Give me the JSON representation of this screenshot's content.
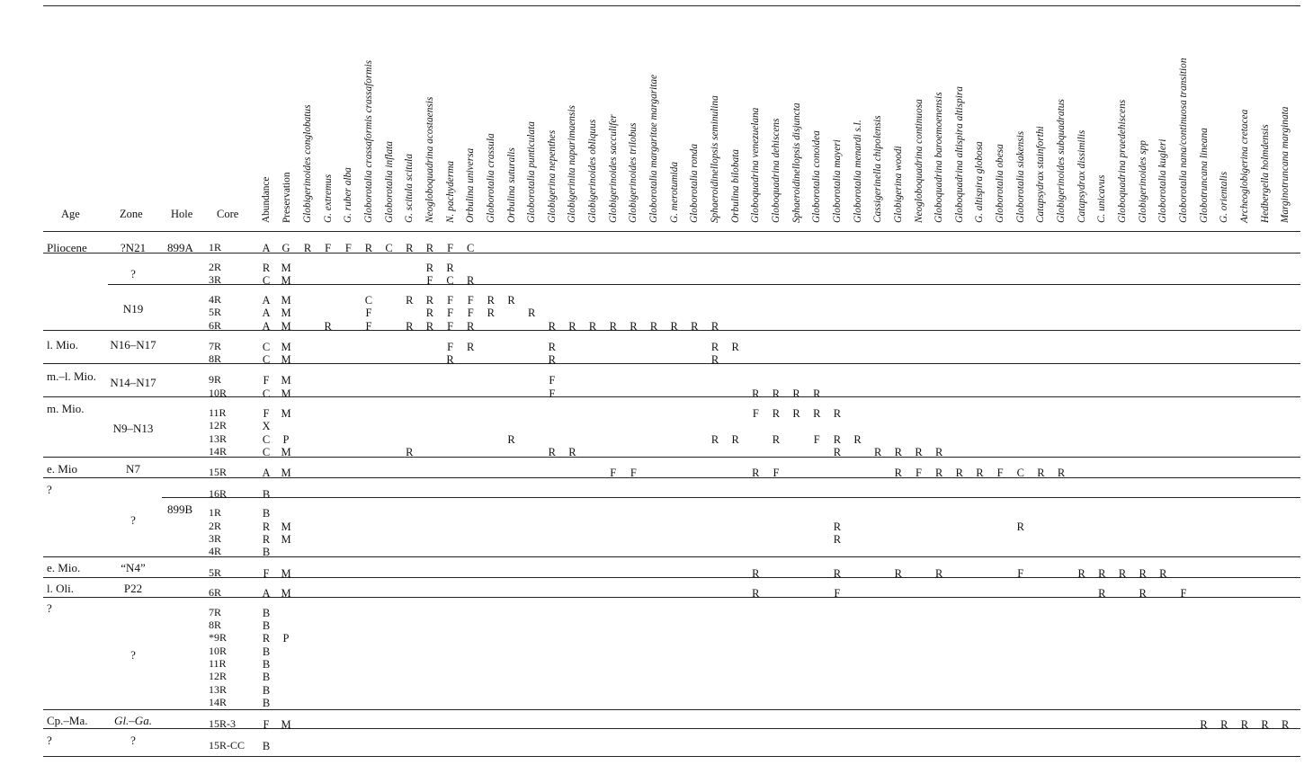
{
  "headers": {
    "age": "Age",
    "zone": "Zone",
    "hole": "Hole",
    "core": "Core",
    "abundance": "Abundance",
    "preservation": "Preservation"
  },
  "species": [
    "Globigerinoides conglobatus",
    "G. extremus",
    "G. ruber alba",
    "Globorotalia crassaformis crassaformis",
    "Globorotalia inflata",
    "G. scitula scitula",
    "Neogloboquadrina acostaensis",
    "N. pachyderma",
    "Orbulina universa",
    "Globorotalia crassula",
    "Orbulina suturalis",
    "Globorotalia punticulata",
    "Globigerina nepenthes",
    "Globigerinita naparimaensis",
    "Globigerinoides obliquus",
    "Globigerinoides sacculifer",
    "Globigerinoides trilobus",
    "Globorotalia margaritae margaritae",
    "G. merotumida",
    "Globorotalia ronda",
    "Sphaeroidinellopsis seminulina",
    "Orbulina bilobata",
    "Globoquadrina venezuelana",
    "Globoquadrina dehiscens",
    "Sphaeroidinellopsis disjuncta",
    "Globorotalia conoidea",
    "Globorotalia mayeri",
    "Globorotalia menardi s.l.",
    "Cassigerinella chipolensis",
    "Globigerina woodi",
    "Neogloboquadrina continuosa",
    "Globoquadrina baroemoenensis",
    "Globoquadrina altispira altispira",
    "G. altispira globosa",
    "Globorotalia obesa",
    "Globorotalia siakensis",
    "Catapsydrax stainforthi",
    "Globigerinoides subquadratus",
    "Catapsydrax dissimilis",
    "C. unicavus",
    "Globoquadrina praedehiscens",
    "Globigerinoides spp",
    "Globorotalia kugleri",
    "Globorotalia nana/continuosa transition",
    "Globotruncana lineana",
    "G. orientalis",
    "Archeoglobigerina cretacea",
    "Hedbergella holmdensis",
    "Marginotruncana marginata"
  ],
  "groups": [
    {
      "age": "Pliocene",
      "zone": "?N21",
      "hole": "899A"
    },
    {
      "age": "",
      "zone": "?",
      "hole": ""
    },
    {
      "age": "",
      "zone": "N19",
      "hole": ""
    },
    {
      "age": "l. Mio.",
      "zone": "N16–N17",
      "hole": ""
    },
    {
      "age": "m.–l. Mio.",
      "zone": "N14–N17",
      "hole": ""
    },
    {
      "age": "m. Mio.",
      "zone": "N9–N13",
      "hole": ""
    },
    {
      "age": "e. Mio",
      "zone": "N7",
      "hole": ""
    },
    {
      "age": "?",
      "zone": "",
      "hole": ""
    },
    {
      "age": "",
      "zone": "?",
      "hole": "899B"
    },
    {
      "age": "e. Mio.",
      "zone": "“N4”",
      "hole": ""
    },
    {
      "age": "l. Oli.",
      "zone": "P22",
      "hole": ""
    },
    {
      "age": "?",
      "zone": "?",
      "hole": ""
    },
    {
      "age": "Cp.–Ma.",
      "zone": "Gl.–Ga.",
      "hole": ""
    },
    {
      "age": "?",
      "zone": "?",
      "hole": ""
    }
  ],
  "rows": [
    {
      "core": "1R",
      "abundance": "A",
      "preservation": "G",
      "cells": {
        "0": "R",
        "1": "F",
        "2": "F",
        "3": "R",
        "4": "C",
        "5": "R",
        "6": "R",
        "7": "F",
        "8": "C"
      }
    },
    {
      "core": "2R",
      "abundance": "R",
      "preservation": "M",
      "cells": {
        "6": "R",
        "7": "R"
      }
    },
    {
      "core": "3R",
      "abundance": "C",
      "preservation": "M",
      "cells": {
        "6": "F",
        "7": "C",
        "8": "R"
      }
    },
    {
      "core": "4R",
      "abundance": "A",
      "preservation": "M",
      "cells": {
        "3": "C",
        "5": "R",
        "6": "R",
        "7": "F",
        "8": "F",
        "9": "R",
        "10": "R"
      }
    },
    {
      "core": "5R",
      "abundance": "A",
      "preservation": "M",
      "cells": {
        "3": "F",
        "6": "R",
        "7": "F",
        "8": "F",
        "9": "R",
        "11": "R"
      }
    },
    {
      "core": "6R",
      "abundance": "A",
      "preservation": "M",
      "cells": {
        "1": "R",
        "3": "F",
        "5": "R",
        "6": "R",
        "7": "F",
        "8": "R",
        "12": "R",
        "13": "R",
        "14": "R",
        "15": "R",
        "16": "R",
        "17": "R",
        "18": "R",
        "19": "R",
        "20": "R"
      }
    },
    {
      "core": "7R",
      "abundance": "C",
      "preservation": "M",
      "cells": {
        "7": "F",
        "8": "R",
        "12": "R",
        "20": "R",
        "21": "R"
      }
    },
    {
      "core": "8R",
      "abundance": "C",
      "preservation": "M",
      "cells": {
        "7": "R",
        "12": "R",
        "20": "R"
      }
    },
    {
      "core": "9R",
      "abundance": "F",
      "preservation": "M",
      "cells": {
        "12": "F"
      }
    },
    {
      "core": "10R",
      "abundance": "C",
      "preservation": "M",
      "cells": {
        "12": "F",
        "22": "R",
        "23": "R",
        "24": "R",
        "25": "R"
      }
    },
    {
      "core": "11R",
      "abundance": "F",
      "preservation": "M",
      "cells": {
        "22": "F",
        "23": "R",
        "24": "R",
        "25": "R",
        "26": "R"
      }
    },
    {
      "core": "12R",
      "abundance": "X",
      "preservation": "",
      "cells": {}
    },
    {
      "core": "13R",
      "abundance": "C",
      "preservation": "P",
      "cells": {
        "10": "R",
        "20": "R",
        "21": "R",
        "23": "R",
        "25": "F",
        "26": "R",
        "27": "R"
      }
    },
    {
      "core": "14R",
      "abundance": "C",
      "preservation": "M",
      "cells": {
        "5": "R",
        "12": "R",
        "13": "R",
        "26": "R",
        "28": "R",
        "29": "R",
        "30": "R",
        "31": "R"
      }
    },
    {
      "core": "15R",
      "abundance": "A",
      "preservation": "M",
      "cells": {
        "15": "F",
        "16": "F",
        "22": "R",
        "23": "F",
        "29": "R",
        "30": "F",
        "31": "R",
        "32": "R",
        "33": "R",
        "34": "F",
        "35": "C",
        "36": "R",
        "37": "R"
      }
    },
    {
      "core": "16R",
      "abundance": "B",
      "preservation": "",
      "cells": {}
    },
    {
      "core": "1R",
      "abundance": "B",
      "preservation": "",
      "cells": {}
    },
    {
      "core": "2R",
      "abundance": "R",
      "preservation": "M",
      "cells": {
        "26": "R",
        "35": "R"
      }
    },
    {
      "core": "3R",
      "abundance": "R",
      "preservation": "M",
      "cells": {
        "26": "R"
      }
    },
    {
      "core": "4R",
      "abundance": "B",
      "preservation": "",
      "cells": {}
    },
    {
      "core": "5R",
      "abundance": "F",
      "preservation": "M",
      "cells": {
        "22": "R",
        "26": "R",
        "29": "R",
        "31": "R",
        "35": "F",
        "38": "R",
        "39": "R",
        "40": "R",
        "41": "R",
        "42": "R"
      }
    },
    {
      "core": "6R",
      "abundance": "A",
      "preservation": "M",
      "cells": {
        "22": "R",
        "26": "F",
        "39": "R",
        "41": "R",
        "43": "F"
      }
    },
    {
      "core": "7R",
      "abundance": "B",
      "preservation": "",
      "cells": {}
    },
    {
      "core": "8R",
      "abundance": "B",
      "preservation": "",
      "cells": {}
    },
    {
      "core": "*9R",
      "abundance": "R",
      "preservation": "P",
      "cells": {}
    },
    {
      "core": "10R",
      "abundance": "B",
      "preservation": "",
      "cells": {}
    },
    {
      "core": "11R",
      "abundance": "B",
      "preservation": "",
      "cells": {}
    },
    {
      "core": "12R",
      "abundance": "B",
      "preservation": "",
      "cells": {}
    },
    {
      "core": "13R",
      "abundance": "B",
      "preservation": "",
      "cells": {}
    },
    {
      "core": "14R",
      "abundance": "B",
      "preservation": "",
      "cells": {}
    },
    {
      "core": "15R-3",
      "abundance": "F",
      "preservation": "M",
      "cells": {
        "44": "R",
        "45": "R",
        "46": "R",
        "47": "R",
        "48": "R"
      }
    },
    {
      "core": "15R-CC",
      "abundance": "B",
      "preservation": "",
      "cells": {}
    }
  ]
}
